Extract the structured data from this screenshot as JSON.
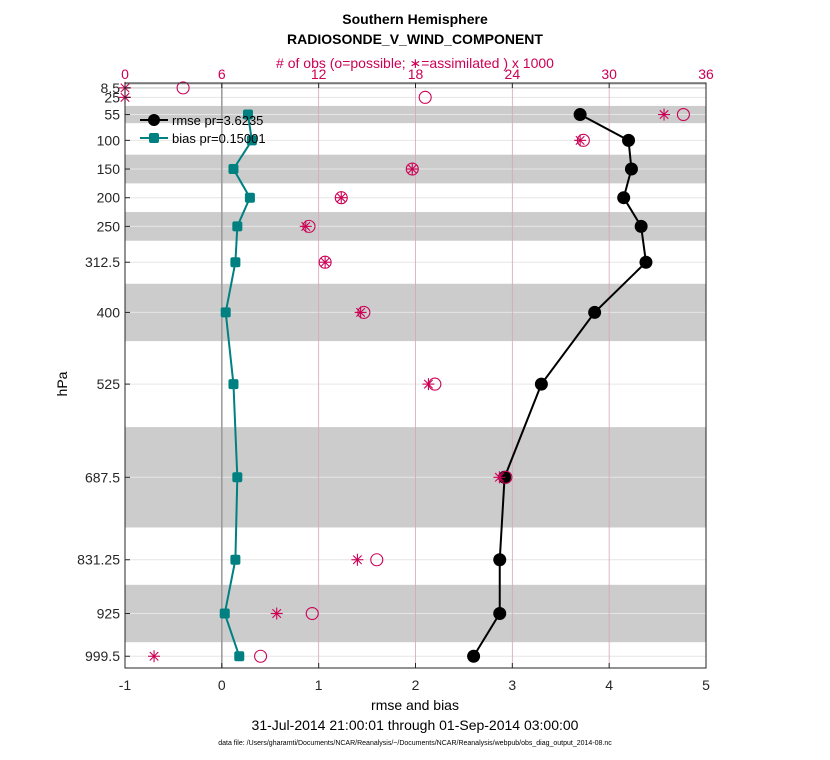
{
  "chart_data": {
    "type": "line",
    "title": "Southern Hemisphere",
    "subtitle": "RADIOSONDE_V_WIND_COMPONENT",
    "top_axis_label": "# of obs (o=possible; ∗=assimilated ) x 1000",
    "xlabel": "rmse and bias",
    "ylabel": "hPa",
    "date_range": "31-Jul-2014 21:00:01 through 01-Sep-2014 03:00:00",
    "footnote": "data file: /Users/gharamti/Documents/NCAR/Reanalysis/~/Documents/NCAR/Reanalysis/webpub/obs_diag_output_2014-08.nc",
    "xlim": [
      -1,
      5
    ],
    "xticks": [
      "-1",
      "0",
      "1",
      "2",
      "3",
      "4",
      "5"
    ],
    "top_xlim": [
      0,
      36
    ],
    "top_xticks": [
      "0",
      "6",
      "12",
      "18",
      "24",
      "30",
      "36"
    ],
    "y_axis_reversed": true,
    "levels": [
      8.5,
      25,
      55,
      100,
      150,
      200,
      250,
      312.5,
      400,
      525,
      687.5,
      831.25,
      925,
      999.5
    ],
    "level_labels": [
      "8.5",
      "25",
      "55",
      "100",
      "150",
      "200",
      "250",
      "312.5",
      "400",
      "525",
      "687.5",
      "831.25",
      "925",
      "999.5"
    ],
    "legend_position": "top-left",
    "legend": [
      "rmse pr=3.6235",
      "bias pr=0.15001"
    ],
    "series": [
      {
        "name": "rmse pr=3.6235",
        "color": "#000000",
        "values": [
          null,
          null,
          3.7,
          4.2,
          4.23,
          4.15,
          4.33,
          4.38,
          3.85,
          3.3,
          2.92,
          2.87,
          2.87,
          2.6
        ]
      },
      {
        "name": "bias pr=0.15001",
        "color": "#008080",
        "values": [
          null,
          null,
          0.27,
          0.31,
          0.12,
          0.29,
          0.16,
          0.14,
          0.04,
          0.12,
          0.16,
          0.14,
          0.03,
          0.18
        ]
      }
    ],
    "obs_possible": [
      3.6,
      18.6,
      34.6,
      28.4,
      17.8,
      13.4,
      11.4,
      12.4,
      14.8,
      19.2,
      23.6,
      15.6,
      11.6,
      8.4
    ],
    "obs_assimilated": [
      0.0,
      0.0,
      33.4,
      28.2,
      17.8,
      13.4,
      11.2,
      12.4,
      14.6,
      18.8,
      23.2,
      14.4,
      9.4,
      1.8
    ],
    "shaded_bands_hpa": [
      [
        0,
        3
      ],
      [
        7,
        10
      ],
      [
        40,
        70
      ],
      [
        125,
        175
      ],
      [
        225,
        275
      ],
      [
        350,
        450
      ],
      [
        600,
        775
      ],
      [
        875,
        975
      ]
    ],
    "grid": true,
    "colors": {
      "obs": "#cc0055",
      "band": "#cccccc",
      "grid": "#e6e6e6",
      "zero_line": "#999999"
    }
  }
}
